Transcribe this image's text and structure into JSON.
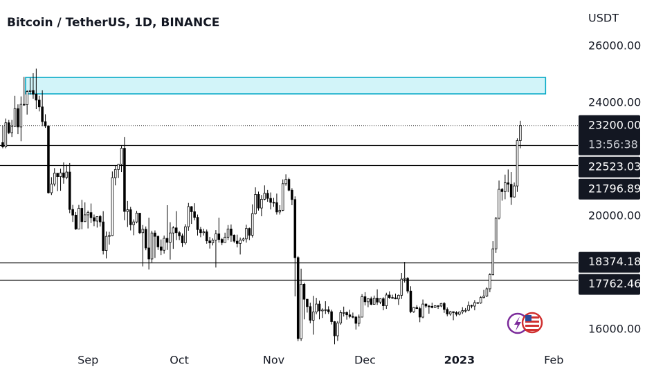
{
  "chart_data": {
    "type": "candlestick",
    "title": "Bitcoin / TetherUS, 1D, BINANCE",
    "y_axis_label": "USDT",
    "up_color": "#ffffff",
    "down_color": "#000000",
    "wick_color": "#000000",
    "open": [
      22600,
      22450,
      23300,
      22950,
      23170,
      23800,
      23150,
      23950,
      23940,
      24400,
      24440,
      24310,
      24100,
      23860,
      23340,
      23190,
      20830,
      21140,
      21520,
      21400,
      21530,
      21370,
      21560,
      20240,
      20040,
      19550,
      20280,
      19810,
      20050,
      20130,
      19950,
      19830,
      19990,
      19800,
      18790,
      19290,
      19320,
      21360,
      21650,
      21830,
      22400,
      20170,
      20230,
      19700,
      19800,
      20110,
      19420,
      19540,
      18880,
      18490,
      19410,
      19290,
      18920,
      18800,
      19220,
      19080,
      19410,
      19590,
      19420,
      19310,
      19060,
      19630,
      20340,
      20160,
      19960,
      19530,
      19420,
      19450,
      19130,
      19060,
      19160,
      19380,
      19180,
      19070,
      19260,
      19550,
      19330,
      19120,
      19040,
      19160,
      19200,
      19570,
      19330,
      20090,
      20770,
      20290,
      20600,
      20810,
      20630,
      20490,
      20480,
      20150,
      20210,
      21150,
      21300,
      20920,
      20590,
      18540,
      15680,
      17600,
      17070,
      16810,
      16330,
      16620,
      16900,
      16660,
      16690,
      16700,
      16630,
      16280,
      15780,
      16230,
      16600,
      16600,
      16520,
      16460,
      16440,
      16220,
      16440,
      17160,
      16980,
      17090,
      16890,
      17110,
      16970,
      17090,
      16840,
      17220,
      17130,
      17120,
      17080,
      17210,
      17780,
      17810,
      17360,
      16630,
      16780,
      16740,
      16440,
      16900,
      16830,
      16820,
      16780,
      16840,
      16830,
      16920,
      16710,
      16550,
      16630,
      16600,
      16540,
      16620,
      16670,
      16680,
      16850,
      16830,
      16950,
      16940,
      17130,
      17180,
      17440,
      17940,
      18850,
      19930,
      20950,
      20870,
      21180,
      21130,
      20680,
      21070,
      22670
    ],
    "high": [
      23200,
      23450,
      23400,
      23400,
      24250,
      23950,
      24230,
      24920,
      24450,
      24890,
      25050,
      25210,
      24250,
      24450,
      23600,
      23200,
      21380,
      21700,
      21520,
      21680,
      21900,
      21820,
      21880,
      20400,
      20150,
      20400,
      20580,
      20490,
      20200,
      20450,
      20060,
      20000,
      20050,
      20180,
      19460,
      19450,
      21580,
      21800,
      21850,
      22480,
      22800,
      20540,
      20330,
      19890,
      20190,
      20110,
      19690,
      19640,
      19950,
      19490,
      19500,
      19320,
      19180,
      19320,
      20390,
      19790,
      19650,
      20180,
      19480,
      19390,
      19720,
      20470,
      20360,
      20460,
      20060,
      19620,
      19560,
      19530,
      19270,
      19220,
      19510,
      19950,
      19230,
      19420,
      19690,
      19710,
      19360,
      19350,
      19250,
      19250,
      19700,
      19600,
      20420,
      21020,
      20870,
      20750,
      21090,
      20930,
      20840,
      20650,
      20800,
      20390,
      21300,
      21480,
      21360,
      20990,
      20700,
      18590,
      18150,
      17650,
      17080,
      16950,
      17190,
      17120,
      17020,
      16750,
      17000,
      16820,
      16700,
      16300,
      16300,
      16680,
      16810,
      16640,
      16700,
      16600,
      16480,
      16530,
      17250,
      17320,
      17110,
      17160,
      17200,
      17420,
      17110,
      17140,
      17300,
      17350,
      17230,
      17270,
      17240,
      18000,
      18390,
      17850,
      17530,
      16800,
      16860,
      16810,
      17060,
      16920,
      16870,
      16950,
      16860,
      16860,
      16940,
      16970,
      16780,
      16660,
      16640,
      16650,
      16630,
      16790,
      16760,
      16990,
      16880,
      17040,
      16960,
      17180,
      17400,
      17490,
      17990,
      19120,
      19970,
      21260,
      21000,
      21470,
      21650,
      21560,
      21190,
      22750,
      23370
    ],
    "low": [
      22400,
      22400,
      22900,
      22800,
      23150,
      22900,
      22650,
      23900,
      23590,
      24300,
      24150,
      23780,
      23700,
      23180,
      23120,
      20800,
      20750,
      21060,
      20890,
      20900,
      21150,
      21310,
      20110,
      19800,
      19520,
      19550,
      19540,
      19800,
      19570,
      19760,
      19650,
      19600,
      19640,
      18650,
      18510,
      19000,
      19300,
      21090,
      21350,
      21560,
      19860,
      19620,
      19500,
      19330,
      19750,
      19370,
      18230,
      18800,
      18120,
      18370,
      18530,
      18810,
      18630,
      18680,
      18810,
      18470,
      18850,
      19160,
      19160,
      18920,
      19000,
      19490,
      19730,
      19860,
      19320,
      19260,
      19320,
      19030,
      18860,
      18970,
      18190,
      19070,
      18980,
      19070,
      19160,
      19100,
      19060,
      18900,
      18650,
      19110,
      19070,
      19160,
      19250,
      20060,
      20200,
      20000,
      20560,
      20510,
      20240,
      20330,
      20060,
      20060,
      20180,
      21080,
      20880,
      20390,
      17170,
      15590,
      15600,
      16360,
      16600,
      16220,
      15820,
      16540,
      16360,
      16410,
      16550,
      16550,
      16180,
      15480,
      15600,
      16170,
      16460,
      16350,
      16400,
      16400,
      16000,
      16110,
      16430,
      16850,
      16790,
      16860,
      16880,
      16870,
      16900,
      16680,
      16730,
      17080,
      17090,
      17070,
      16870,
      17080,
      17660,
      17280,
      16580,
      16590,
      16730,
      16260,
      16400,
      16760,
      16560,
      16750,
      16760,
      16730,
      16790,
      16590,
      16470,
      16490,
      16330,
      16470,
      16500,
      16550,
      16600,
      16650,
      16750,
      16680,
      16910,
      16910,
      17100,
      17150,
      17320,
      17910,
      18710,
      19890,
      20550,
      20600,
      20850,
      20400,
      20660,
      20860,
      22400
    ],
    "close": [
      22450,
      23300,
      22950,
      23170,
      23800,
      23150,
      23950,
      23940,
      24400,
      24440,
      24310,
      24100,
      23860,
      23340,
      23190,
      20830,
      21140,
      21520,
      21400,
      21530,
      21370,
      21560,
      20240,
      20040,
      19550,
      20280,
      19810,
      20050,
      20130,
      19950,
      19830,
      19990,
      19800,
      18790,
      19290,
      19320,
      21360,
      21650,
      21830,
      22400,
      20170,
      20230,
      19700,
      19800,
      20110,
      19420,
      19540,
      18880,
      18490,
      19410,
      19290,
      18920,
      18800,
      19220,
      19080,
      19410,
      19590,
      19420,
      19310,
      19060,
      19630,
      20340,
      20160,
      19960,
      19530,
      19420,
      19450,
      19130,
      19060,
      19160,
      19380,
      19180,
      19070,
      19260,
      19550,
      19330,
      19120,
      19040,
      19160,
      19200,
      19570,
      19330,
      20090,
      20770,
      20290,
      20600,
      20810,
      20630,
      20490,
      20480,
      20150,
      20210,
      21150,
      21300,
      20920,
      20590,
      18540,
      15680,
      17600,
      17070,
      16810,
      16330,
      16620,
      16900,
      16660,
      16690,
      16700,
      16630,
      16280,
      15780,
      16230,
      16600,
      16600,
      16520,
      16460,
      16440,
      16220,
      16440,
      17160,
      16980,
      17090,
      16890,
      17110,
      16970,
      17090,
      16840,
      17220,
      17130,
      17120,
      17080,
      17210,
      17780,
      17810,
      17360,
      16630,
      16780,
      16740,
      16440,
      16900,
      16830,
      16820,
      16780,
      16840,
      16830,
      16920,
      16710,
      16550,
      16630,
      16600,
      16540,
      16620,
      16670,
      16680,
      16850,
      16830,
      16950,
      16940,
      17130,
      17180,
      17440,
      17940,
      18850,
      19930,
      20950,
      20870,
      21180,
      21130,
      20680,
      21070,
      22670,
      23200
    ],
    "last_price": {
      "value": 23200,
      "label": "23200.00"
    },
    "countdown": "13:56:38",
    "levels": [
      22523.03,
      21796.89,
      18374.18,
      17762.46
    ],
    "zone": {
      "ylim": [
        24320,
        24900
      ],
      "xlim": [
        7.5,
        178.3
      ],
      "color": "#d2f4f9",
      "border_color": "#00a7c5"
    },
    "xlim": [
      -0.9,
      188.9
    ],
    "xticks": [
      {
        "value": 28,
        "label": "Sep"
      },
      {
        "value": 58,
        "label": "Oct"
      },
      {
        "value": 89,
        "label": "Nov"
      },
      {
        "value": 119,
        "label": "Dec"
      },
      {
        "value": 150,
        "label": "2023"
      },
      {
        "value": 181,
        "label": "Feb"
      }
    ],
    "ylim": [
      15317,
      27634
    ],
    "yticks": [
      {
        "value": 16000,
        "label": "16000.00"
      },
      {
        "value": 20000,
        "label": "20000.00"
      },
      {
        "value": 24000,
        "label": "24000.00"
      },
      {
        "value": 26000,
        "label": "26000.00"
      }
    ],
    "grid": false
  }
}
